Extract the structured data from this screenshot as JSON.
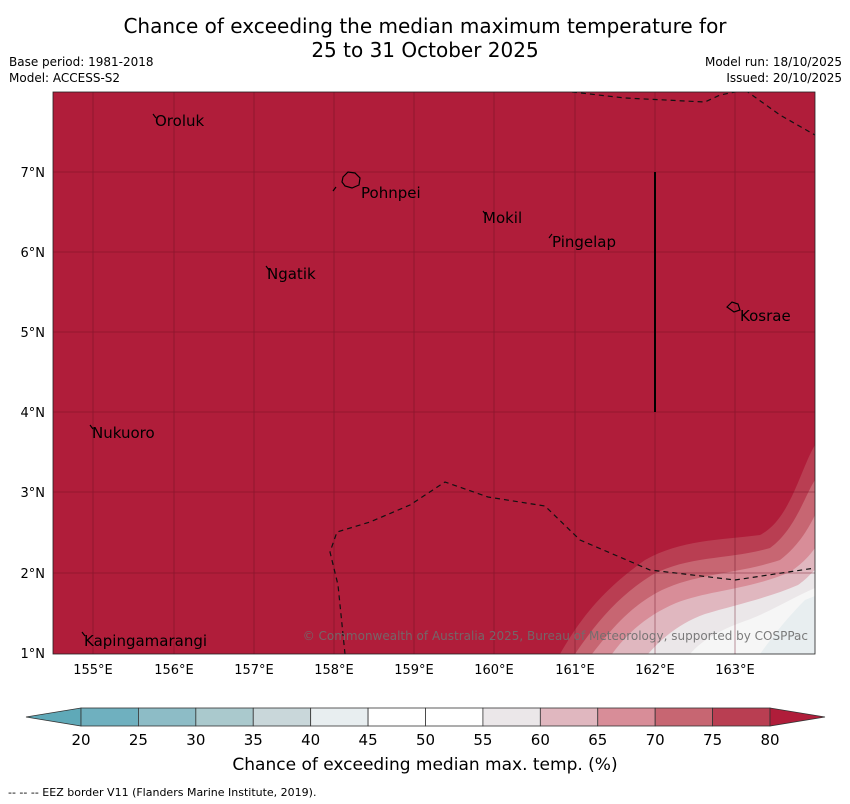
{
  "title": {
    "line1": "Chance of exceeding the median maximum temperature for",
    "line2": "25 to 31 October 2025"
  },
  "meta": {
    "base_period": "Base period: 1981-2018",
    "model": "Model: ACCESS-S2",
    "model_run": "Model run: 18/10/2025",
    "issued": "Issued: 20/10/2025"
  },
  "axes": {
    "lat_labels": [
      "7°N",
      "6°N",
      "5°N",
      "4°N",
      "3°N",
      "2°N",
      "1°N"
    ],
    "lon_labels": [
      "155°E",
      "156°E",
      "157°E",
      "158°E",
      "159°E",
      "160°E",
      "161°E",
      "162°E",
      "163°E"
    ]
  },
  "places": [
    {
      "name": "Oroluk"
    },
    {
      "name": "Pohnpei"
    },
    {
      "name": "Mokil"
    },
    {
      "name": "Pingelap"
    },
    {
      "name": "Ngatik"
    },
    {
      "name": "Kosrae"
    },
    {
      "name": "Nukuoro"
    },
    {
      "name": "Kapingamarangi"
    }
  ],
  "copyright": "© Commonwealth of Australia 2025, Bureau of Meteorology, supported by COSPPac",
  "colorbar": {
    "title": "Chance of exceeding median max. temp. (%)",
    "ticks": [
      "20",
      "25",
      "30",
      "35",
      "40",
      "45",
      "50",
      "55",
      "60",
      "65",
      "70",
      "75",
      "80"
    ],
    "colors": {
      "below": "#5fa9b8",
      "bins": [
        "#6fb0bf",
        "#8dbcc6",
        "#aac9cd",
        "#c9d7da",
        "#e8eef0",
        "#ffffff",
        "#ffffff",
        "#ebe7e9",
        "#e0b7bf",
        "#d88d98",
        "#c76672",
        "#b93e52"
      ],
      "above": "#b01d3a"
    }
  },
  "footer": "-- --  -- EEZ border V11 (Flanders Marine Institute, 2019).",
  "colors": {
    "map_fill": "#b01d3a"
  }
}
